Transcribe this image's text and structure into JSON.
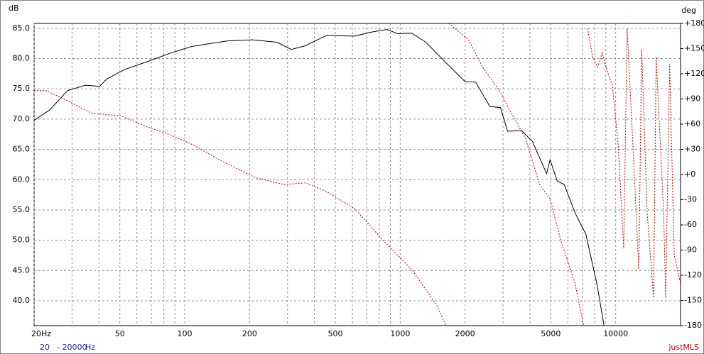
{
  "chart_data": {
    "type": "line",
    "ylabel": "dB",
    "y2label": "deg",
    "xscale": "log",
    "grid": true,
    "xlim": [
      20,
      20000
    ],
    "xticks": [
      {
        "value": 20,
        "label": "20Hz"
      },
      50,
      100,
      200,
      500,
      1000,
      2000,
      5000,
      10000
    ],
    "xminor": [
      30,
      40,
      60,
      70,
      80,
      90,
      300,
      400,
      600,
      700,
      800,
      900,
      3000,
      4000,
      6000,
      7000,
      8000,
      9000
    ],
    "ylim": [
      35.9,
      85.8
    ],
    "yticks": [
      {
        "value": 40,
        "label": "40.0"
      },
      {
        "value": 45,
        "label": "45.0"
      },
      {
        "value": 50,
        "label": "50.0"
      },
      {
        "value": 55,
        "label": "55.0"
      },
      {
        "value": 60,
        "label": "60.0"
      },
      {
        "value": 65,
        "label": "65.0"
      },
      {
        "value": 70,
        "label": "70.0"
      },
      {
        "value": 75,
        "label": "75.0"
      },
      {
        "value": 80,
        "label": "80.0"
      },
      {
        "value": 85,
        "label": "85.0"
      }
    ],
    "y2lim": [
      -180,
      180
    ],
    "y2ticks": [
      -180,
      -150,
      -120,
      -90,
      -60,
      -30,
      {
        "value": 0,
        "label": "+0"
      },
      {
        "value": 30,
        "label": "+30"
      },
      {
        "value": 60,
        "label": "+60"
      },
      {
        "value": 90,
        "label": "+90"
      },
      {
        "value": 120,
        "label": "+120"
      },
      {
        "value": 150,
        "label": "+150"
      },
      {
        "value": 180,
        "label": "+180"
      }
    ],
    "series": [
      {
        "color": "#000000",
        "dash": false,
        "x": [
          20,
          23.6,
          28.6,
          34.6,
          40.2,
          43.4,
          52.6,
          68.5,
          85.9,
          108,
          157,
          206,
          268,
          312,
          362,
          454,
          617,
          719,
          870,
          973,
          1130,
          1315,
          1653,
          2000,
          2240,
          2606,
          2920,
          3150,
          3660,
          4110,
          4780,
          4960,
          5350,
          5770,
          6480,
          7270,
          8180,
          8830
        ],
        "values": [
          69.8,
          71.5,
          74.7,
          75.6,
          75.4,
          76.6,
          78.2,
          79.6,
          80.9,
          82.0,
          82.9,
          83.1,
          82.7,
          81.5,
          82.1,
          83.8,
          83.7,
          84.3,
          84.8,
          84.1,
          84.2,
          82.7,
          79.1,
          76.2,
          76.1,
          72.1,
          71.9,
          68.0,
          68.1,
          66.3,
          61.0,
          63.3,
          59.8,
          59.2,
          54.5,
          51.0,
          42.8,
          35.9
        ]
      },
      {
        "color": "#b00000",
        "dash": true,
        "axis": "y2",
        "x": [
          20,
          22.7,
          27.5,
          37,
          50.4,
          68.5,
          86,
          108,
          146,
          214,
          290,
          362,
          454,
          617,
          837,
          1130,
          1480,
          1630,
          1650,
          1680,
          2070,
          2410,
          2920,
          3280,
          3810,
          4440,
          4960,
          5570,
          6480,
          7100,
          7250,
          7400,
          7820,
          8240,
          8660,
          9140,
          9640,
          10250,
          10900,
          11300,
          12000,
          12800,
          13200,
          14000,
          15000,
          15400,
          16700,
          17060,
          17800,
          18700,
          20000
        ],
        "values": [
          100,
          100,
          90,
          73,
          70,
          56,
          47,
          36,
          17,
          -4,
          -12,
          -10,
          -20,
          -41,
          -79,
          -113,
          -156,
          -180,
          null,
          180,
          161,
          128,
          98,
          73,
          43,
          -12,
          -29,
          -79,
          -130,
          -180,
          null,
          174,
          140,
          128,
          145,
          123,
          106,
          39,
          -88,
          174,
          39,
          -113,
          149,
          -46,
          -147,
          140,
          -46,
          -147,
          132,
          -96,
          -130
        ]
      }
    ],
    "footer": {
      "from": "20",
      "to": "- 20000",
      "unit": "Hz",
      "brand": "justMLS"
    }
  }
}
